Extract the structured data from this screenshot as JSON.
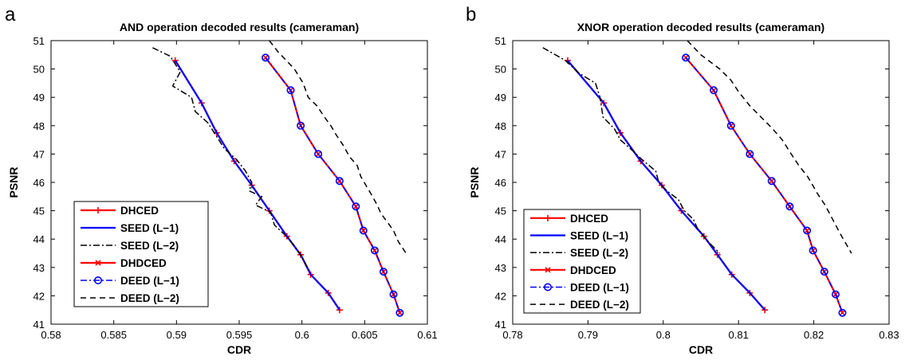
{
  "panels": [
    {
      "letter": "a"
    },
    {
      "letter": "b"
    }
  ],
  "legend_entries": [
    "DHCED",
    "SEED (L−1)",
    "SEED (L−2)",
    "DHDCED",
    "DEED (L−1)",
    "DEED (L−2)"
  ],
  "colors": {
    "red": "#ff0000",
    "blue": "#0000ff",
    "black": "#000000"
  },
  "chart_data": [
    {
      "type": "line",
      "title": "AND operation decoded results (cameraman)",
      "xlabel": "CDR",
      "ylabel": "PSNR",
      "xlim": [
        0.58,
        0.61
      ],
      "ylim": [
        41,
        51
      ],
      "xticks": [
        "0.58",
        "0.585",
        "0.59",
        "0.595",
        "0.6",
        "0.605",
        "0.61"
      ],
      "yticks": [
        "41",
        "42",
        "43",
        "44",
        "45",
        "46",
        "47",
        "48",
        "49",
        "50",
        "51"
      ],
      "legend_position": "lower-left",
      "grid": false,
      "series": [
        {
          "name": "DHCED",
          "color": "#ff0000",
          "style": "solid",
          "marker": "plus",
          "x": [
            0.5899,
            0.592,
            0.5932,
            0.5946,
            0.596,
            0.5974,
            0.5988,
            0.5999,
            0.6007,
            0.6021,
            0.603
          ],
          "y": [
            50.3,
            48.8,
            47.75,
            46.75,
            45.9,
            45.0,
            44.1,
            43.45,
            42.75,
            42.1,
            41.5
          ]
        },
        {
          "name": "SEED (L−1)",
          "color": "#0000ff",
          "style": "solid",
          "marker": "none",
          "x": [
            0.5899,
            0.592,
            0.5932,
            0.5946,
            0.596,
            0.5974,
            0.5988,
            0.5999,
            0.6007,
            0.6021,
            0.603
          ],
          "y": [
            50.3,
            48.8,
            47.75,
            46.75,
            45.9,
            45.0,
            44.1,
            43.45,
            42.75,
            42.1,
            41.5
          ]
        },
        {
          "name": "SEED (L−2)",
          "color": "#000000",
          "style": "dashdot",
          "marker": "none",
          "x": [
            0.5881,
            0.5895,
            0.5903,
            0.5897,
            0.5912,
            0.5915,
            0.5925,
            0.5933,
            0.5938,
            0.5948,
            0.5955,
            0.596,
            0.5958,
            0.5968,
            0.5963,
            0.5975,
            0.5978,
            0.599,
            0.5998,
            0.6007
          ],
          "y": [
            50.75,
            50.45,
            49.9,
            49.4,
            49.0,
            48.5,
            48.1,
            47.55,
            47.2,
            46.8,
            46.4,
            46.0,
            45.7,
            45.5,
            45.2,
            44.95,
            44.5,
            44.0,
            43.5,
            42.8
          ]
        },
        {
          "name": "DHDCED",
          "color": "#ff0000",
          "style": "solid",
          "marker": "x",
          "x": [
            0.5971,
            0.5991,
            0.5999,
            0.6013,
            0.603,
            0.6043,
            0.6049,
            0.6058,
            0.6065,
            0.6073,
            0.6078
          ],
          "y": [
            50.4,
            49.25,
            48.0,
            47.0,
            46.05,
            45.15,
            44.3,
            43.6,
            42.85,
            42.05,
            41.4
          ]
        },
        {
          "name": "DEED (L−1)",
          "color": "#0000ff",
          "style": "dashdot",
          "marker": "circle",
          "x": [
            0.5971,
            0.5991,
            0.5999,
            0.6013,
            0.603,
            0.6043,
            0.6049,
            0.6058,
            0.6065,
            0.6073,
            0.6078
          ],
          "y": [
            50.4,
            49.25,
            48.0,
            47.0,
            46.05,
            45.15,
            44.3,
            43.6,
            42.85,
            42.05,
            41.4
          ]
        },
        {
          "name": "DEED (L−2)",
          "color": "#000000",
          "style": "dashed",
          "marker": "none",
          "x": [
            0.5974,
            0.5981,
            0.5994,
            0.6001,
            0.6005,
            0.6012,
            0.6018,
            0.6023,
            0.6027,
            0.6033,
            0.6038,
            0.6044,
            0.6047,
            0.6051,
            0.6055,
            0.606,
            0.6063,
            0.6068,
            0.6073,
            0.6077,
            0.6083
          ],
          "y": [
            51.0,
            50.6,
            50.0,
            49.5,
            49.0,
            48.7,
            48.3,
            48.0,
            47.7,
            47.3,
            46.9,
            46.6,
            46.2,
            45.9,
            45.6,
            45.2,
            44.9,
            44.6,
            44.3,
            43.9,
            43.5
          ]
        }
      ]
    },
    {
      "type": "line",
      "title": "XNOR operation decoded results (cameraman)",
      "xlabel": "CDR",
      "ylabel": "PSNR",
      "xlim": [
        0.78,
        0.83
      ],
      "ylim": [
        41,
        51
      ],
      "xticks": [
        "0.78",
        "0.79",
        "0.8",
        "0.81",
        "0.82",
        "0.83"
      ],
      "yticks": [
        "41",
        "42",
        "43",
        "44",
        "45",
        "46",
        "47",
        "48",
        "49",
        "50",
        "51"
      ],
      "legend_position": "lower-left",
      "grid": false,
      "series": [
        {
          "name": "DHCED",
          "color": "#ff0000",
          "style": "solid",
          "marker": "plus",
          "x": [
            0.7873,
            0.7921,
            0.7943,
            0.797,
            0.7998,
            0.8024,
            0.8054,
            0.8072,
            0.8091,
            0.8115,
            0.8135
          ],
          "y": [
            50.3,
            48.8,
            47.75,
            46.75,
            45.9,
            45.0,
            44.1,
            43.45,
            42.75,
            42.1,
            41.5
          ]
        },
        {
          "name": "SEED (L−1)",
          "color": "#0000ff",
          "style": "solid",
          "marker": "none",
          "x": [
            0.7873,
            0.7921,
            0.7943,
            0.797,
            0.7998,
            0.8024,
            0.8054,
            0.8072,
            0.8091,
            0.8115,
            0.8135
          ],
          "y": [
            50.3,
            48.8,
            47.75,
            46.75,
            45.9,
            45.0,
            44.1,
            43.45,
            42.75,
            42.1,
            41.5
          ]
        },
        {
          "name": "SEED (L−2)",
          "color": "#000000",
          "style": "dashdot",
          "marker": "none",
          "x": [
            0.784,
            0.787,
            0.7888,
            0.791,
            0.7916,
            0.792,
            0.7935,
            0.7943,
            0.7958,
            0.7972,
            0.799,
            0.7994,
            0.8005,
            0.802,
            0.8028,
            0.804,
            0.8045,
            0.806,
            0.8075
          ],
          "y": [
            50.75,
            50.3,
            49.85,
            49.5,
            49.0,
            48.3,
            47.9,
            47.5,
            47.15,
            46.8,
            46.4,
            46.0,
            45.7,
            45.4,
            45.0,
            44.7,
            44.4,
            43.9,
            43.5
          ]
        },
        {
          "name": "DHDCED",
          "color": "#ff0000",
          "style": "solid",
          "marker": "x",
          "x": [
            0.803,
            0.8067,
            0.809,
            0.8115,
            0.8144,
            0.8168,
            0.8191,
            0.8199,
            0.8214,
            0.8229,
            0.8238
          ],
          "y": [
            50.4,
            49.25,
            48.0,
            47.0,
            46.05,
            45.15,
            44.3,
            43.6,
            42.85,
            42.05,
            41.4
          ]
        },
        {
          "name": "DEED (L−1)",
          "color": "#0000ff",
          "style": "dashdot",
          "marker": "circle",
          "x": [
            0.803,
            0.8067,
            0.809,
            0.8115,
            0.8144,
            0.8168,
            0.8191,
            0.8199,
            0.8214,
            0.8229,
            0.8238
          ],
          "y": [
            50.4,
            49.25,
            48.0,
            47.0,
            46.05,
            45.15,
            44.3,
            43.6,
            42.85,
            42.05,
            41.4
          ]
        },
        {
          "name": "DEED (L−2)",
          "color": "#000000",
          "style": "dashed",
          "marker": "none",
          "x": [
            0.8032,
            0.805,
            0.8075,
            0.809,
            0.81,
            0.8115,
            0.813,
            0.8145,
            0.8158,
            0.817,
            0.818,
            0.8192,
            0.8205,
            0.8215,
            0.8225,
            0.8235,
            0.825
          ],
          "y": [
            51.0,
            50.5,
            50.0,
            49.6,
            49.2,
            48.7,
            48.3,
            47.9,
            47.5,
            47.0,
            46.6,
            46.2,
            45.6,
            45.2,
            44.7,
            44.2,
            43.5
          ]
        }
      ]
    }
  ]
}
